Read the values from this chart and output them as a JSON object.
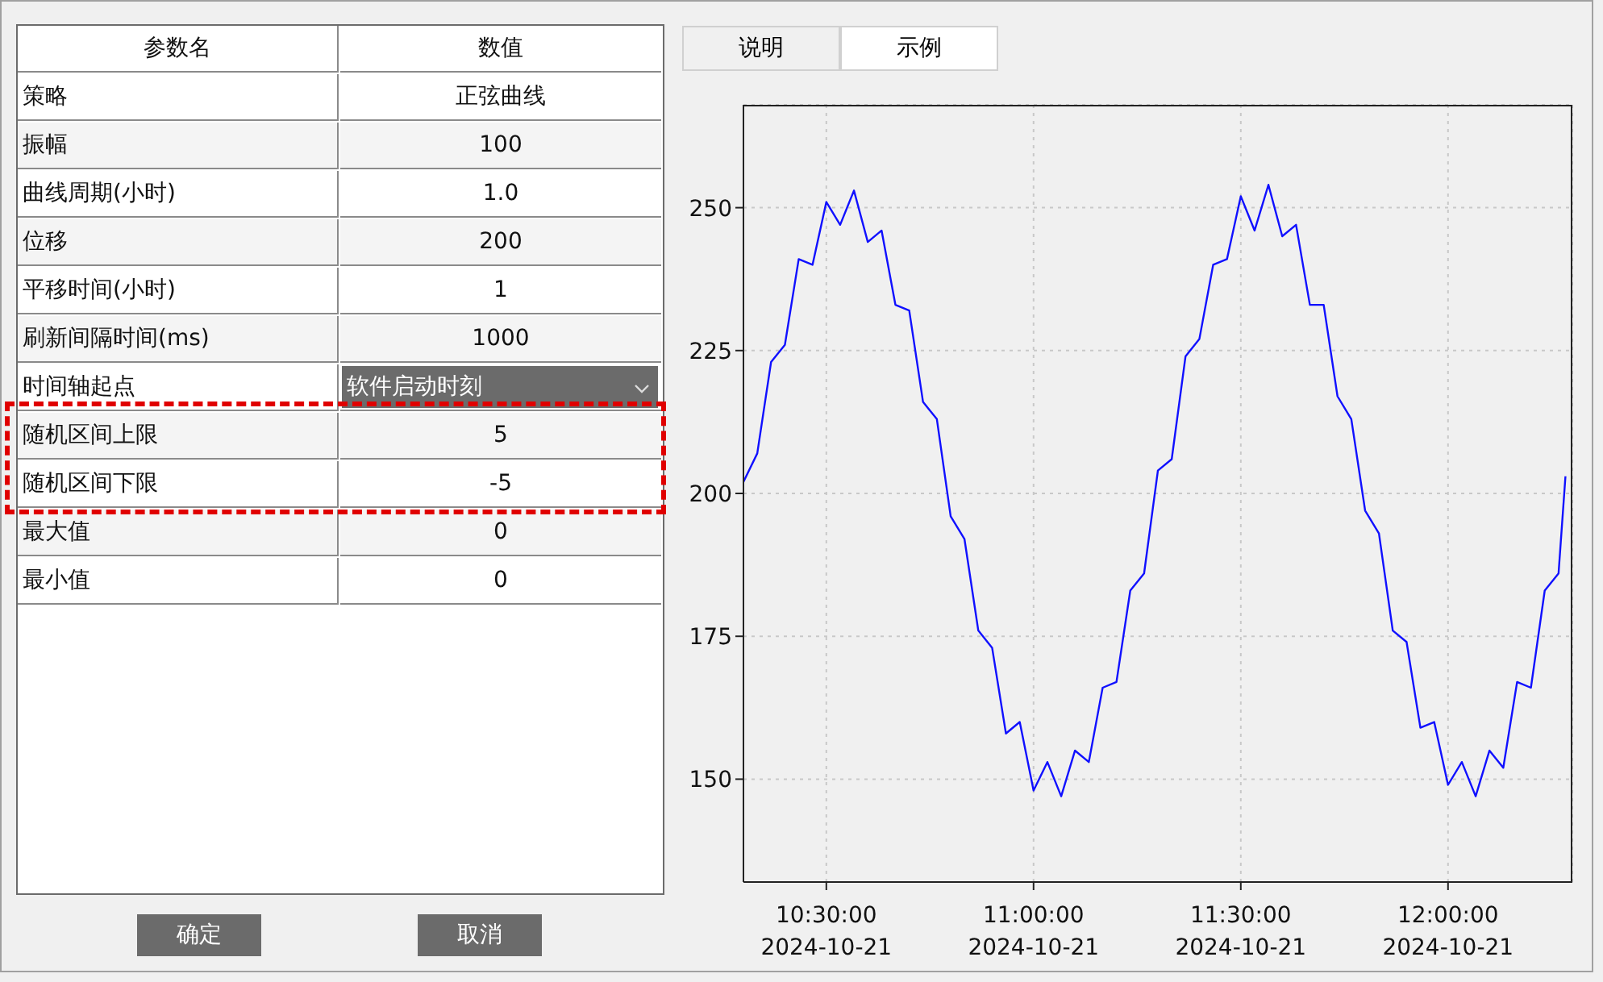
{
  "chart_data": [
    {
      "type": "other",
      "annotations": [
        "参数名",
        "数值",
        "策略",
        "正弦曲线",
        "振幅",
        "100",
        "曲线周期(小时)",
        "1.0",
        "位移",
        "200",
        "平移时间(小时)",
        "1",
        "刷新间隔时间(ms)",
        "1000",
        "时间轴起点",
        "软件启动时刻",
        "随机区间上限",
        "5",
        "随机区间下限",
        "-5",
        "最大值",
        "0",
        "最小值",
        "0",
        "说明",
        "示例",
        "确定",
        "取消"
      ]
    },
    {
      "type": "line",
      "x": [
        "2024-10-21T10:18",
        "2024-10-21T10:20",
        "2024-10-21T10:22",
        "2024-10-21T10:24",
        "2024-10-21T10:26",
        "2024-10-21T10:28",
        "2024-10-21T10:30",
        "2024-10-21T10:32",
        "2024-10-21T10:34",
        "2024-10-21T10:36",
        "2024-10-21T10:38",
        "2024-10-21T10:40",
        "2024-10-21T10:42",
        "2024-10-21T10:44",
        "2024-10-21T10:46",
        "2024-10-21T10:48",
        "2024-10-21T10:50",
        "2024-10-21T10:52",
        "2024-10-21T10:54",
        "2024-10-21T10:56",
        "2024-10-21T10:58",
        "2024-10-21T11:00",
        "2024-10-21T11:02",
        "2024-10-21T11:04",
        "2024-10-21T11:06",
        "2024-10-21T11:08",
        "2024-10-21T11:10",
        "2024-10-21T11:12",
        "2024-10-21T11:14",
        "2024-10-21T11:16",
        "2024-10-21T11:18",
        "2024-10-21T11:20",
        "2024-10-21T11:22",
        "2024-10-21T11:24",
        "2024-10-21T11:26",
        "2024-10-21T11:28",
        "2024-10-21T11:30",
        "2024-10-21T11:32",
        "2024-10-21T11:34",
        "2024-10-21T11:36",
        "2024-10-21T11:38",
        "2024-10-21T11:40",
        "2024-10-21T11:42",
        "2024-10-21T11:44",
        "2024-10-21T11:46",
        "2024-10-21T11:48",
        "2024-10-21T11:50",
        "2024-10-21T11:52",
        "2024-10-21T11:54",
        "2024-10-21T11:56",
        "2024-10-21T11:58",
        "2024-10-21T12:00",
        "2024-10-21T12:02",
        "2024-10-21T12:04",
        "2024-10-21T12:06",
        "2024-10-21T12:08",
        "2024-10-21T12:10",
        "2024-10-21T12:12",
        "2024-10-21T12:14",
        "2024-10-21T12:16",
        "2024-10-21T12:17"
      ],
      "series": [
        {
          "color": "#1010ff",
          "values": [
            202,
            207,
            223,
            226,
            241,
            240,
            251,
            247,
            253,
            244,
            246,
            233,
            232,
            216,
            213,
            196,
            192,
            176,
            173,
            158,
            160,
            148,
            153,
            147,
            155,
            153,
            166,
            167,
            183,
            186,
            204,
            206,
            224,
            227,
            240,
            241,
            252,
            246,
            254,
            245,
            247,
            233,
            233,
            217,
            213,
            197,
            193,
            176,
            174,
            159,
            160,
            149,
            153,
            147,
            155,
            152,
            167,
            166,
            183,
            186,
            203
          ]
        }
      ],
      "xlim": [
        "2024-10-21T10:18",
        "2024-10-21T12:18"
      ],
      "xticks": [
        {
          "value": "2024-10-21T10:30",
          "label": "10:30:00\n2024-10-21"
        },
        {
          "value": "2024-10-21T11:00",
          "label": "11:00:00\n2024-10-21"
        },
        {
          "value": "2024-10-21T11:30",
          "label": "11:30:00\n2024-10-21"
        },
        {
          "value": "2024-10-21T12:00",
          "label": "12:00:00\n2024-10-21"
        }
      ],
      "ylim": [
        132,
        268
      ],
      "yticks": [
        150,
        175,
        200,
        225,
        250
      ],
      "grid": true,
      "marker": "none",
      "line_style": "solid"
    }
  ]
}
